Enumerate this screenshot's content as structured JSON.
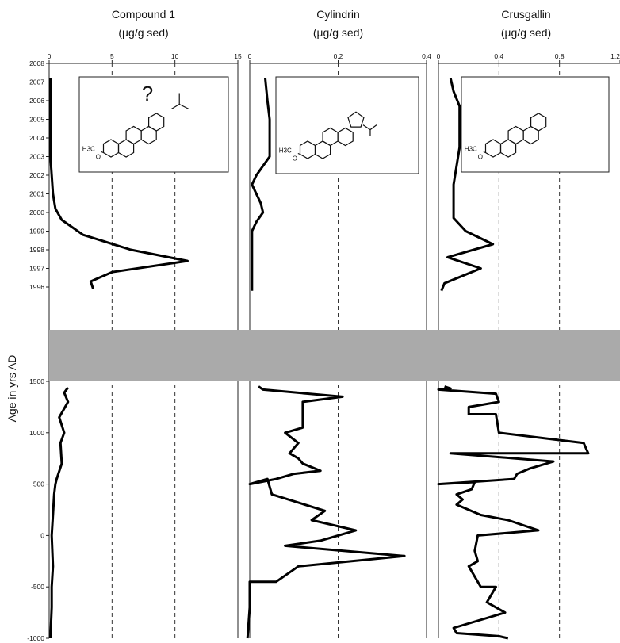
{
  "chart_data": {
    "type": "line",
    "ylabel": "Age in yrs AD",
    "y_ticks_recent": [
      "2008",
      "2007",
      "2006",
      "2005",
      "2004",
      "2003",
      "2002",
      "2001",
      "2000",
      "1999",
      "1998",
      "1997",
      "1996"
    ],
    "y_ticks_old": [
      "1500",
      "1000",
      "500",
      "0",
      "-500",
      "-1000"
    ],
    "break_band": "1996 - 1500",
    "panels": [
      {
        "title_line1": "Compound 1",
        "title_line2": "(µg/g sed)",
        "xlim": [
          0,
          15
        ],
        "x_ticks": [
          "0",
          "5",
          "10",
          "15"
        ],
        "x_tick_values": [
          0,
          5,
          10,
          15
        ],
        "dashed_at": [
          5,
          10
        ],
        "structure_label": "H3C",
        "structure_note": "?",
        "series": {
          "recent": [
            [
              0.1,
              2007.2
            ],
            [
              0.1,
              2006
            ],
            [
              0.1,
              2005
            ],
            [
              0.1,
              2004
            ],
            [
              0.1,
              2003
            ],
            [
              0.2,
              2002
            ],
            [
              0.3,
              2001
            ],
            [
              0.5,
              2000.2
            ],
            [
              1.0,
              1999.6
            ],
            [
              2.7,
              1998.8
            ],
            [
              6.5,
              1998
            ],
            [
              11.0,
              1997.4
            ],
            [
              5.0,
              1996.8
            ],
            [
              3.3,
              1996.3
            ],
            [
              3.5,
              1995.9
            ]
          ],
          "old": [
            [
              1.5,
              1440
            ],
            [
              1.2,
              1390
            ],
            [
              1.5,
              1300
            ],
            [
              0.8,
              1150
            ],
            [
              1.2,
              1000
            ],
            [
              0.9,
              900
            ],
            [
              1.0,
              700
            ],
            [
              0.6,
              550
            ],
            [
              0.5,
              500
            ],
            [
              0.4,
              400
            ],
            [
              0.3,
              200
            ],
            [
              0.2,
              0
            ],
            [
              0.3,
              -300
            ],
            [
              0.2,
              -500
            ],
            [
              0.2,
              -700
            ],
            [
              0.1,
              -1000
            ]
          ]
        }
      },
      {
        "title_line1": "Cylindrin",
        "title_line2": "(µg/g sed)",
        "xlim": [
          0,
          0.4
        ],
        "x_ticks": [
          "0",
          "0.2",
          "0.4"
        ],
        "x_tick_values": [
          0,
          0.2,
          0.4
        ],
        "dashed_at": [
          0.2
        ],
        "structure_label": "H3C",
        "series": {
          "recent": [
            [
              0.035,
              2007.2
            ],
            [
              0.04,
              2006
            ],
            [
              0.045,
              2005
            ],
            [
              0.045,
              2004
            ],
            [
              0.045,
              2003
            ],
            [
              0.015,
              2002
            ],
            [
              0.005,
              2001.5
            ],
            [
              0.025,
              2000.5
            ],
            [
              0.03,
              2000
            ],
            [
              0.015,
              1999.5
            ],
            [
              0.005,
              1999
            ],
            [
              0.005,
              1998
            ],
            [
              0.005,
              1997
            ],
            [
              0.005,
              1996
            ],
            [
              0.005,
              1995.8
            ]
          ],
          "old": [
            [
              0.02,
              1450
            ],
            [
              0.03,
              1420
            ],
            [
              0.21,
              1350
            ],
            [
              0.12,
              1300
            ],
            [
              0.12,
              1050
            ],
            [
              0.08,
              1000
            ],
            [
              0.11,
              900
            ],
            [
              0.1,
              850
            ],
            [
              0.09,
              800
            ],
            [
              0.11,
              750
            ],
            [
              0.12,
              700
            ],
            [
              0.16,
              630
            ],
            [
              0.1,
              600
            ],
            [
              0.06,
              550
            ],
            [
              0.0,
              500
            ],
            [
              0.04,
              550
            ],
            [
              0.05,
              400
            ],
            [
              0.17,
              240
            ],
            [
              0.14,
              150
            ],
            [
              0.24,
              50
            ],
            [
              0.16,
              -50
            ],
            [
              0.08,
              -100
            ],
            [
              0.35,
              -200
            ],
            [
              0.11,
              -300
            ],
            [
              0.06,
              -450
            ],
            [
              0.0,
              -450
            ],
            [
              0.0,
              -700
            ],
            [
              -0.005,
              -1000
            ]
          ]
        }
      },
      {
        "title_line1": "Crusgallin",
        "title_line2": "(µg/g sed)",
        "xlim": [
          0,
          1.2
        ],
        "x_ticks": [
          "0",
          "0.4",
          "0.8",
          "1.2"
        ],
        "x_tick_values": [
          0,
          0.4,
          0.8,
          1.2
        ],
        "dashed_at": [
          0.4,
          0.8
        ],
        "structure_label": "H3C",
        "series": {
          "recent": [
            [
              0.08,
              2007.2
            ],
            [
              0.1,
              2006.5
            ],
            [
              0.14,
              2005.7
            ],
            [
              0.14,
              2004.5
            ],
            [
              0.14,
              2003.5
            ],
            [
              0.12,
              2002.5
            ],
            [
              0.1,
              2001.5
            ],
            [
              0.1,
              2000.5
            ],
            [
              0.1,
              1999.7
            ],
            [
              0.18,
              1999
            ],
            [
              0.36,
              1998.3
            ],
            [
              0.06,
              1997.6
            ],
            [
              0.28,
              1997
            ],
            [
              0.04,
              1996.2
            ],
            [
              0.02,
              1995.8
            ]
          ],
          "old": [
            [
              0.04,
              1450
            ],
            [
              0.08,
              1430
            ],
            [
              0.0,
              1420
            ],
            [
              0.38,
              1380
            ],
            [
              0.4,
              1300
            ],
            [
              0.2,
              1250
            ],
            [
              0.2,
              1180
            ],
            [
              0.38,
              1180
            ],
            [
              0.4,
              1000
            ],
            [
              0.96,
              900
            ],
            [
              0.99,
              800
            ],
            [
              0.08,
              800
            ],
            [
              0.76,
              720
            ],
            [
              0.6,
              650
            ],
            [
              0.52,
              600
            ],
            [
              0.5,
              550
            ],
            [
              0.0,
              500
            ],
            [
              0.24,
              520
            ],
            [
              0.22,
              450
            ],
            [
              0.12,
              400
            ],
            [
              0.16,
              350
            ],
            [
              0.12,
              300
            ],
            [
              0.28,
              200
            ],
            [
              0.46,
              150
            ],
            [
              0.66,
              50
            ],
            [
              0.26,
              0
            ],
            [
              0.24,
              -150
            ],
            [
              0.26,
              -250
            ],
            [
              0.2,
              -300
            ],
            [
              0.28,
              -500
            ],
            [
              0.38,
              -500
            ],
            [
              0.32,
              -650
            ],
            [
              0.44,
              -750
            ],
            [
              0.1,
              -900
            ],
            [
              0.12,
              -950
            ],
            [
              0.4,
              -980
            ],
            [
              0.46,
              -1000
            ]
          ]
        }
      }
    ]
  }
}
